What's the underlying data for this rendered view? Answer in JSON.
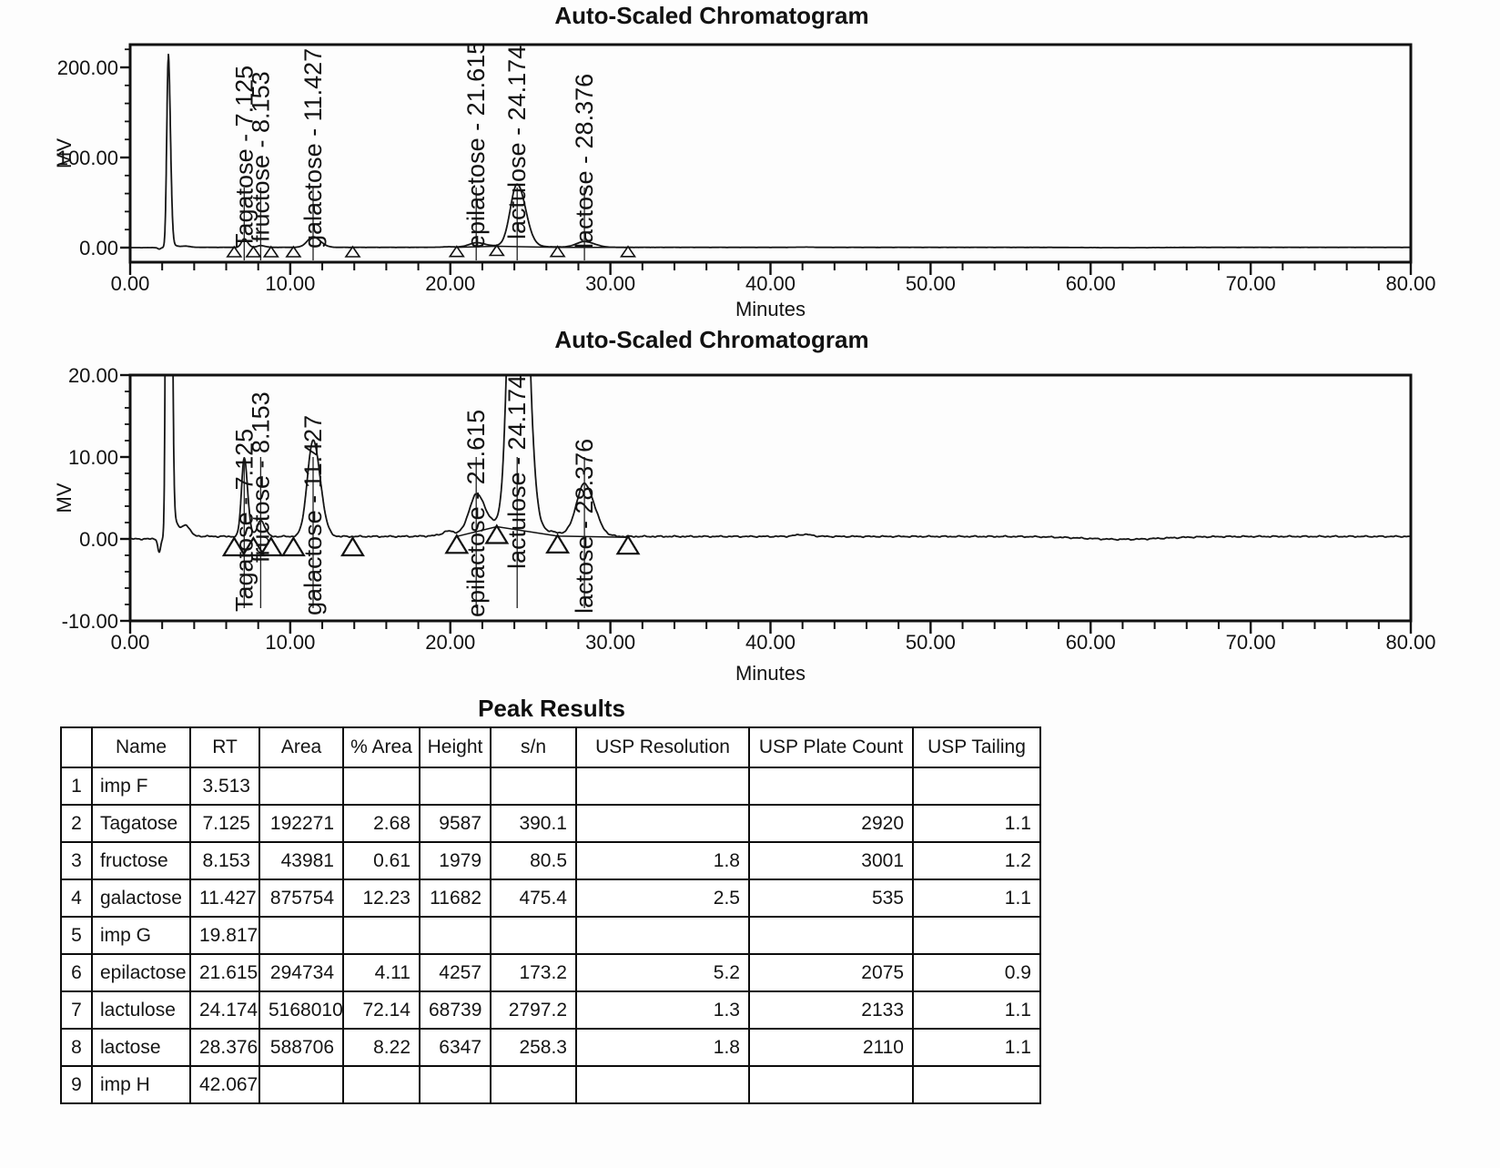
{
  "chart_data": [
    {
      "type": "line",
      "title": "Auto-Scaled Chromatogram",
      "xlabel": "Minutes",
      "ylabel": "MV",
      "xlim": [
        0,
        80
      ],
      "ylim": [
        -16,
        225
      ],
      "x_tick_values": [
        0,
        10,
        20,
        30,
        40,
        50,
        60,
        70,
        80
      ],
      "x_tick_labels": [
        "0.00",
        "10.00",
        "20.00",
        "30.00",
        "40.00",
        "50.00",
        "60.00",
        "70.00",
        "80.00"
      ],
      "x_minor_tick_step": 2,
      "y_tick_values": [
        0,
        100,
        200
      ],
      "y_tick_labels": [
        "0.00",
        "100.00",
        "200.00"
      ],
      "y_minor_tick_step": 20,
      "grid": false,
      "solvent_front": {
        "rt": 2.38,
        "height_mv": 209,
        "sigma_left": 0.095,
        "sigma_right": 0.135
      },
      "peaks": [
        {
          "name": "Tagatose",
          "rt": 7.125,
          "height_mv": 9.587,
          "sigma": 0.17,
          "label": "Tagatose - 7.125"
        },
        {
          "name": "fructose",
          "rt": 8.153,
          "height_mv": 1.979,
          "sigma": 0.21,
          "label": "fructose - 8.153"
        },
        {
          "name": "galactose",
          "rt": 11.427,
          "height_mv": 11.682,
          "sigma": 0.36,
          "label": "galactose - 11.427"
        },
        {
          "name": "epilactose",
          "rt": 21.615,
          "height_mv": 4.257,
          "sigma": 0.42,
          "label": "epilactose - 21.615"
        },
        {
          "name": "lactulose",
          "rt": 24.174,
          "height_mv": 68.739,
          "sigma": 0.42,
          "label": "lactulose - 24.174"
        },
        {
          "name": "lactose",
          "rt": 28.376,
          "height_mv": 6.347,
          "sigma": 0.5,
          "label": "lactose - 28.376"
        }
      ],
      "unlabeled_peaks": [
        {
          "name": "imp F",
          "rt": 3.513,
          "height_mv": 1.1,
          "sigma": 0.22
        },
        {
          "name": "imp G",
          "rt": 19.817,
          "height_mv": 0.4,
          "sigma": 0.3
        },
        {
          "name": "imp H",
          "rt": 42.067,
          "height_mv": 0.25,
          "sigma": 0.5
        }
      ],
      "integration_baseline": [
        [
          20.4,
          0.3
        ],
        [
          22.9,
          1.5
        ],
        [
          26.7,
          0.35
        ],
        [
          31.1,
          0.2
        ]
      ],
      "integration_marks": [
        {
          "t": 6.5,
          "base": 0
        },
        {
          "t": 7.7,
          "base": 0
        },
        {
          "t": 8.8,
          "base": 0
        },
        {
          "t": 10.2,
          "base": 0
        },
        {
          "t": 13.9,
          "base": 0
        },
        {
          "t": 20.4,
          "base": 0.3
        },
        {
          "t": 22.9,
          "base": 1.5
        },
        {
          "t": 26.7,
          "base": 0.35
        },
        {
          "t": 31.1,
          "base": 0.2
        }
      ]
    },
    {
      "type": "line",
      "title": "Auto-Scaled Chromatogram",
      "xlabel": "Minutes",
      "ylabel": "MV",
      "xlim": [
        0,
        80
      ],
      "ylim": [
        -10,
        20
      ],
      "x_tick_values": [
        0,
        10,
        20,
        30,
        40,
        50,
        60,
        70,
        80
      ],
      "x_tick_labels": [
        "0.00",
        "10.00",
        "20.00",
        "30.00",
        "40.00",
        "50.00",
        "60.00",
        "70.00",
        "80.00"
      ],
      "x_minor_tick_step": 2,
      "y_tick_values": [
        -10,
        0,
        10,
        20
      ],
      "y_tick_labels": [
        "-10.00",
        "0.00",
        "10.00",
        "20.00"
      ],
      "y_minor_tick_step": 2,
      "grid": false,
      "solvent_front": {
        "rt": 2.38,
        "height_mv": 209,
        "sigma_left": 0.095,
        "sigma_right": 0.135
      },
      "peaks": [
        {
          "name": "Tagatose",
          "rt": 7.125,
          "height_mv": 9.587,
          "sigma": 0.17,
          "label": "Tagatose - 7.125"
        },
        {
          "name": "fructose",
          "rt": 8.153,
          "height_mv": 1.979,
          "sigma": 0.21,
          "label": "fructose - 8.153"
        },
        {
          "name": "galactose",
          "rt": 11.427,
          "height_mv": 11.682,
          "sigma": 0.36,
          "label": "galactose - 11.427"
        },
        {
          "name": "epilactose",
          "rt": 21.615,
          "height_mv": 4.257,
          "sigma": 0.42,
          "label": "epilactose - 21.615"
        },
        {
          "name": "lactulose",
          "rt": 24.174,
          "height_mv": 68.739,
          "sigma": 0.42,
          "label": "lactulose - 24.174"
        },
        {
          "name": "lactose",
          "rt": 28.376,
          "height_mv": 6.347,
          "sigma": 0.5,
          "label": "lactose - 28.376"
        }
      ],
      "unlabeled_peaks": [
        {
          "name": "imp F",
          "rt": 3.513,
          "height_mv": 1.1,
          "sigma": 0.22
        },
        {
          "name": "imp G",
          "rt": 19.817,
          "height_mv": 0.4,
          "sigma": 0.3
        },
        {
          "name": "imp H",
          "rt": 42.067,
          "height_mv": 0.25,
          "sigma": 0.5
        }
      ],
      "integration_baseline": [
        [
          20.4,
          0.3
        ],
        [
          22.9,
          1.5
        ],
        [
          26.7,
          0.35
        ],
        [
          31.1,
          0.2
        ]
      ],
      "integration_marks": [
        {
          "t": 6.5,
          "base": 0
        },
        {
          "t": 7.7,
          "base": 0
        },
        {
          "t": 8.8,
          "base": 0
        },
        {
          "t": 10.2,
          "base": 0
        },
        {
          "t": 13.9,
          "base": 0
        },
        {
          "t": 20.4,
          "base": 0.3
        },
        {
          "t": 22.9,
          "base": 1.5
        },
        {
          "t": 26.7,
          "base": 0.35
        },
        {
          "t": 31.1,
          "base": 0.2
        }
      ]
    }
  ],
  "table": {
    "title": "Peak Results",
    "columns": [
      "",
      "Name",
      "RT",
      "Area",
      "% Area",
      "Height",
      "s/n",
      "USP Resolution",
      "USP Plate Count",
      "USP Tailing"
    ],
    "rows": [
      [
        "1",
        "imp F",
        "3.513",
        "",
        "",
        "",
        "",
        "",
        "",
        ""
      ],
      [
        "2",
        "Tagatose",
        "7.125",
        "192271",
        "2.68",
        "9587",
        "390.1",
        "",
        "2920",
        "1.1"
      ],
      [
        "3",
        "fructose",
        "8.153",
        "43981",
        "0.61",
        "1979",
        "80.5",
        "1.8",
        "3001",
        "1.2"
      ],
      [
        "4",
        "galactose",
        "11.427",
        "875754",
        "12.23",
        "11682",
        "475.4",
        "2.5",
        "535",
        "1.1"
      ],
      [
        "5",
        "imp G",
        "19.817",
        "",
        "",
        "",
        "",
        "",
        "",
        ""
      ],
      [
        "6",
        "epilactose",
        "21.615",
        "294734",
        "4.11",
        "4257",
        "173.2",
        "5.2",
        "2075",
        "0.9"
      ],
      [
        "7",
        "lactulose",
        "24.174",
        "5168010",
        "72.14",
        "68739",
        "2797.2",
        "1.3",
        "2133",
        "1.1"
      ],
      [
        "8",
        "lactose",
        "28.376",
        "588706",
        "8.22",
        "6347",
        "258.3",
        "1.8",
        "2110",
        "1.1"
      ],
      [
        "9",
        "imp H",
        "42.067",
        "",
        "",
        "",
        "",
        "",
        "",
        ""
      ]
    ]
  }
}
